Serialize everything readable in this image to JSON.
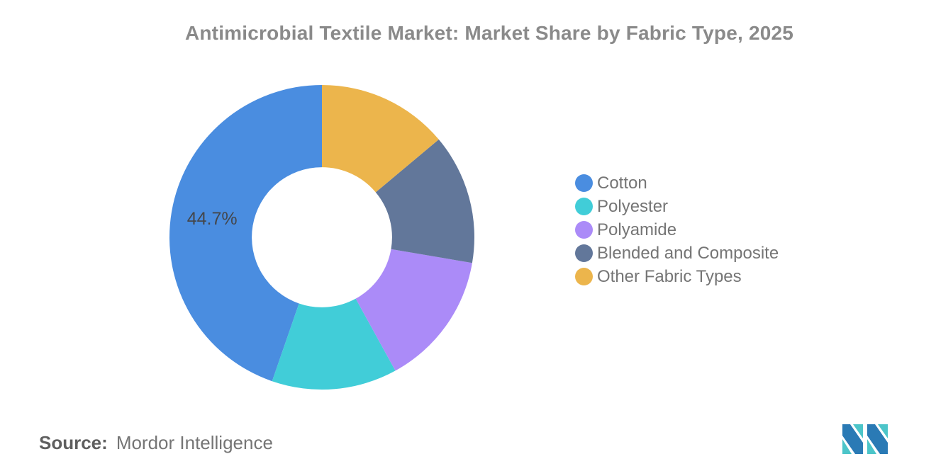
{
  "title": "Antimicrobial Textile Market: Market Share by Fabric Type, 2025",
  "source": {
    "label": "Source:",
    "value": "Mordor Intelligence"
  },
  "logo": {
    "name": "mordor-intelligence-logo",
    "blue": "#2a7ab5",
    "teal": "#4cc5c9"
  },
  "colors": {
    "title_text": "#8a8a8a",
    "legend_text": "#757575",
    "data_label_text": "#44474c",
    "background": "#ffffff"
  },
  "chart_data": {
    "type": "pie",
    "donut": true,
    "title": "Antimicrobial Textile Market: Market Share by Fabric Type, 2025",
    "start_angle_deg": 0,
    "direction": "counterclockwise",
    "inner_radius_ratio": 0.46,
    "legend_position": "right",
    "slices": [
      {
        "label": "Cotton",
        "value": 44.7,
        "color": "#4a8de0",
        "data_label": "44.7%"
      },
      {
        "label": "Polyester",
        "value": 13.3,
        "color": "#41cdd8"
      },
      {
        "label": "Polyamide",
        "value": 14.3,
        "color": "#ab8bf8"
      },
      {
        "label": "Blended and Composite",
        "value": 13.8,
        "color": "#62779a"
      },
      {
        "label": "Other Fabric Types",
        "value": 13.9,
        "color": "#ecb54c"
      }
    ]
  }
}
